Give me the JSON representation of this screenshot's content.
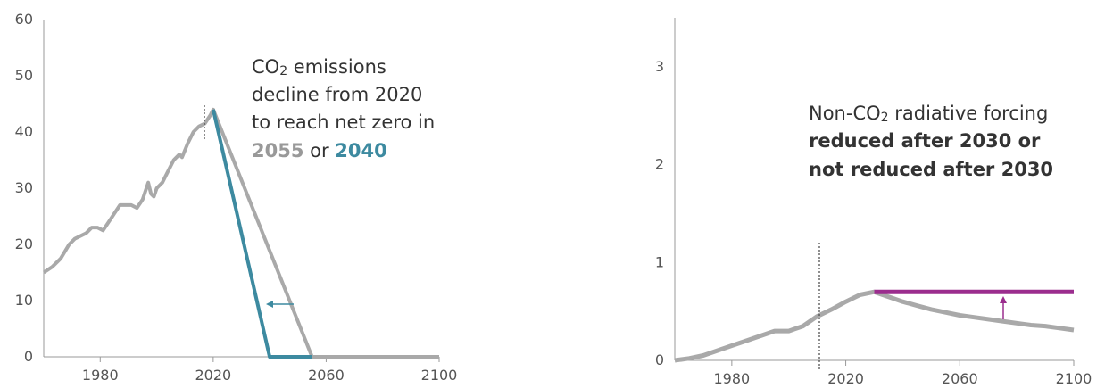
{
  "colors": {
    "gray": "#a9a9a9",
    "teal": "#3d8aa0",
    "purple": "#9b2d8e",
    "axis": "#999999",
    "text": "#333333"
  },
  "chart_data": [
    {
      "type": "line",
      "xlim": [
        1960,
        2100
      ],
      "ylim": [
        0,
        60
      ],
      "yticks": [
        "0",
        "10",
        "20",
        "30",
        "40",
        "50",
        "60"
      ],
      "xticks": [
        "1980",
        "2020",
        "2060",
        "2100"
      ],
      "annotation": {
        "line1a": "CO",
        "line1sub": "2",
        "line1b": " emissions",
        "line2": "decline from 2020",
        "line3": "to reach net zero in",
        "line4a": "2055",
        "line4b": " or ",
        "line4c": "2040"
      },
      "series": [
        {
          "color": "#a9a9a9",
          "x": [
            1960,
            1963,
            1966,
            1969,
            1971,
            1973,
            1975,
            1977,
            1979,
            1981,
            1983,
            1985,
            1987,
            1989,
            1991,
            1993,
            1995,
            1997,
            1998,
            1999,
            2000,
            2002,
            2004,
            2006,
            2008,
            2009,
            2011,
            2013,
            2015,
            2017,
            2019,
            2020,
            2055,
            2100
          ],
          "y": [
            15,
            16,
            17.5,
            20,
            21,
            21.5,
            22,
            23,
            23,
            22.5,
            24,
            25.5,
            27,
            27,
            27,
            26.5,
            28,
            31,
            29,
            28.5,
            30,
            31,
            33,
            35,
            36,
            35.5,
            38,
            40,
            41,
            41.5,
            43,
            44,
            0,
            0
          ]
        },
        {
          "color": "#3d8aa0",
          "x": [
            2020,
            2040,
            2055
          ],
          "y": [
            44,
            0,
            0
          ]
        }
      ]
    },
    {
      "type": "line",
      "xlim": [
        1960,
        2100
      ],
      "ylim": [
        0,
        3.5
      ],
      "yticks": [
        "0",
        "1",
        "2",
        "3"
      ],
      "xticks": [
        "1980",
        "2020",
        "2060",
        "2100"
      ],
      "annotation": {
        "line1a": "Non-CO",
        "line1sub": "2",
        "line1b": " radiative forcing",
        "line2": "reduced after 2030 or",
        "line3": "not reduced after 2030"
      },
      "series": [
        {
          "color": "#a9a9a9",
          "x": [
            1960,
            1965,
            1970,
            1975,
            1980,
            1985,
            1990,
            1995,
            2000,
            2005,
            2010,
            2015,
            2020,
            2025,
            2030,
            2035,
            2040,
            2045,
            2050,
            2055,
            2060,
            2065,
            2070,
            2075,
            2080,
            2085,
            2090,
            2095,
            2100
          ],
          "y": [
            0,
            0.02,
            0.05,
            0.1,
            0.15,
            0.2,
            0.25,
            0.3,
            0.3,
            0.35,
            0.45,
            0.52,
            0.6,
            0.67,
            0.7,
            0.65,
            0.6,
            0.56,
            0.52,
            0.49,
            0.46,
            0.44,
            0.42,
            0.4,
            0.38,
            0.36,
            0.35,
            0.33,
            0.31
          ]
        },
        {
          "color": "#9b2d8e",
          "x": [
            2030,
            2100
          ],
          "y": [
            0.7,
            0.7
          ]
        }
      ]
    }
  ]
}
